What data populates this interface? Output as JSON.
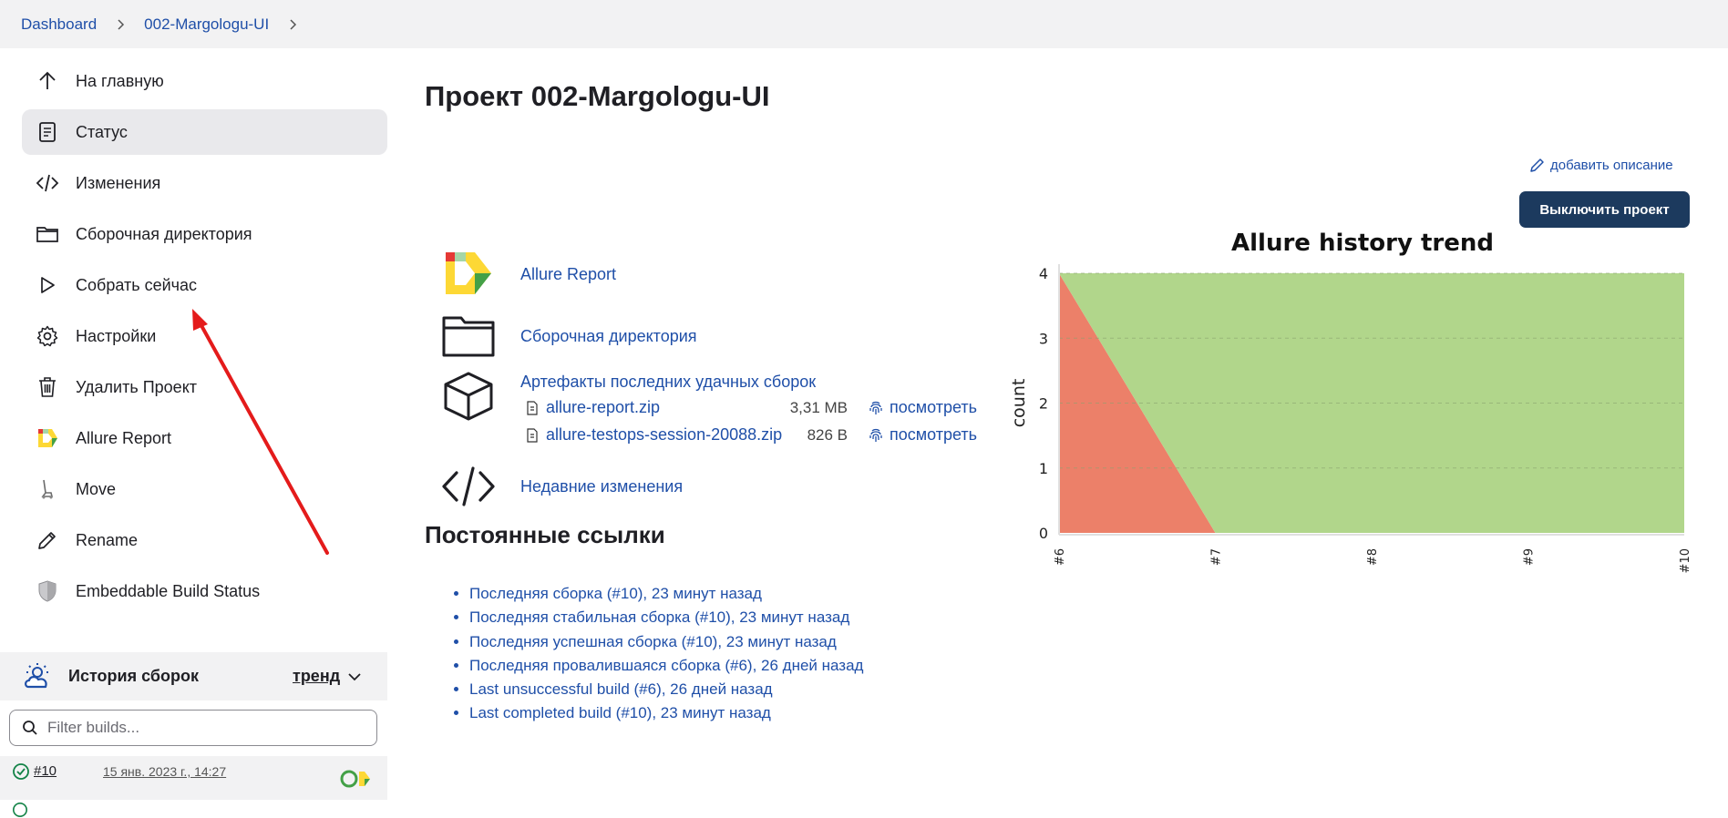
{
  "breadcrumb": {
    "items": [
      "Dashboard",
      "002-Margologu-UI"
    ]
  },
  "sidebar": {
    "items": [
      {
        "label": "На главную"
      },
      {
        "label": "Статус"
      },
      {
        "label": "Изменения"
      },
      {
        "label": "Сборочная директория"
      },
      {
        "label": "Собрать сейчас"
      },
      {
        "label": "Настройки"
      },
      {
        "label": "Удалить Проект"
      },
      {
        "label": "Allure Report"
      },
      {
        "label": "Move"
      },
      {
        "label": "Rename"
      },
      {
        "label": "Embeddable Build Status"
      }
    ],
    "active_index": 1
  },
  "history": {
    "title": "История сборок",
    "trend_label": "тренд",
    "filter_placeholder": "Filter builds...",
    "builds": [
      {
        "number": "#10",
        "date": "15 янв. 2023 г., 14:27"
      }
    ]
  },
  "main": {
    "title": "Проект 002-Margologu-UI",
    "add_description": "добавить описание",
    "disable_button": "Выключить проект",
    "links": {
      "allure": "Allure Report",
      "workspace": "Сборочная директория",
      "artifacts_title": "Артефакты последних удачных сборок",
      "recent_changes": "Недавние изменения"
    },
    "artifacts": [
      {
        "name": "allure-report.zip",
        "size": "3,31 MB",
        "view": "посмотреть"
      },
      {
        "name": "allure-testops-session-20088.zip",
        "size": "826 B",
        "view": "посмотреть"
      }
    ],
    "permalinks_title": "Постоянные ссылки",
    "permalinks": [
      "Последняя сборка (#10), 23 минут назад",
      "Последняя стабильная сборка (#10), 23 минут назад",
      "Последняя успешная сборка (#10), 23 минут назад",
      "Последняя провалившаяся сборка (#6), 26 дней назад",
      "Last unsuccessful build (#6), 26 дней назад",
      "Last completed build (#10), 23 минут назад"
    ]
  },
  "colors": {
    "link": "#1f4fa8",
    "button": "#1c3a5e",
    "passed": "#b1d68b",
    "failed": "#ec8069",
    "annotation_arrow": "#e41b1b"
  },
  "chart_data": {
    "type": "area",
    "title": "Allure history trend",
    "ylabel": "count",
    "xlabel": "",
    "x": [
      "#6",
      "#7",
      "#8",
      "#9",
      "#10"
    ],
    "ylim": [
      0,
      4
    ],
    "yticks": [
      "0",
      "1",
      "2",
      "3",
      "4"
    ],
    "grid": true,
    "stacked": true,
    "series": [
      {
        "values": [
          4,
          0,
          0,
          0,
          0
        ],
        "color": "#ec8069"
      },
      {
        "values": [
          0,
          4,
          4,
          4,
          4
        ],
        "color": "#b1d68b"
      }
    ]
  }
}
